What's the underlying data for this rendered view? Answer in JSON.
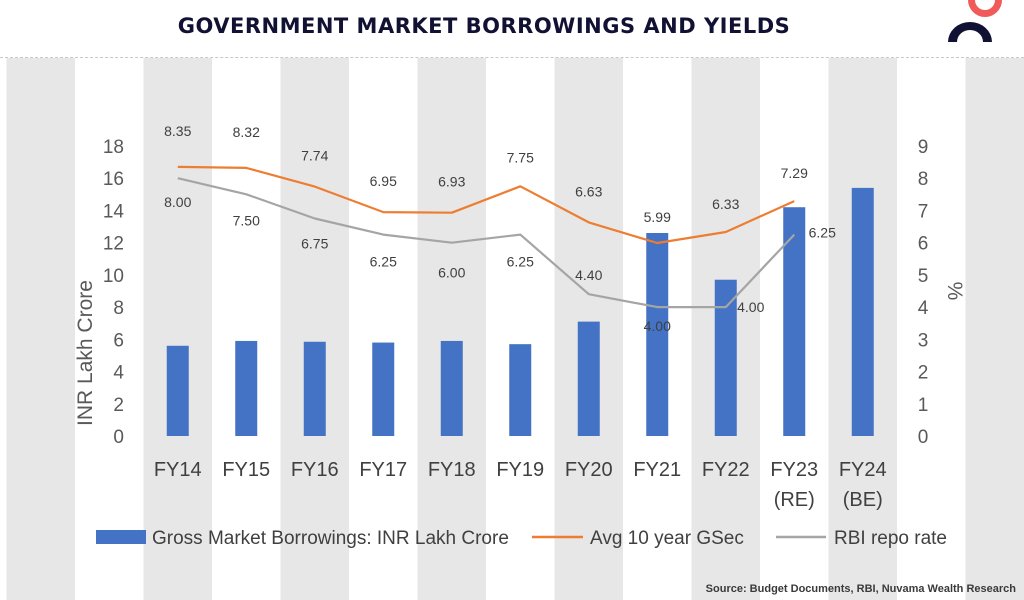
{
  "header": {
    "title": "GOVERNMENT MARKET BORROWINGS AND YIELDS"
  },
  "footer": {
    "source": "Source: Budget Documents, RBI, Nuvama Wealth Research"
  },
  "colors": {
    "bar": "#4472C4",
    "gsec": "#ED7D31",
    "repo": "#A5A5A5",
    "band": "#E7E7E7",
    "logo_red": "#F15A5A",
    "logo_navy": "#111133"
  },
  "icons": {
    "logo": "nuvama-logo-icon"
  },
  "chart_data": {
    "type": "bar",
    "title": "GOVERNMENT MARKET BORROWINGS AND YIELDS",
    "categories": [
      "FY14",
      "FY15",
      "FY16",
      "FY17",
      "FY18",
      "FY19",
      "FY20",
      "FY21",
      "FY22",
      "FY23 (RE)",
      "FY24 (BE)"
    ],
    "category_lines": [
      [
        "FY14"
      ],
      [
        "FY15"
      ],
      [
        "FY16"
      ],
      [
        "FY17"
      ],
      [
        "FY18"
      ],
      [
        "FY19"
      ],
      [
        "FY20"
      ],
      [
        "FY21"
      ],
      [
        "FY22"
      ],
      [
        "FY23",
        "(RE)"
      ],
      [
        "FY24",
        "(BE)"
      ]
    ],
    "ylabel": "INR Lakh Crore",
    "y2label": "%",
    "ylim": [
      0,
      18
    ],
    "y2lim": [
      0,
      9
    ],
    "yticks": [
      0,
      2,
      4,
      6,
      8,
      10,
      12,
      14,
      16,
      18
    ],
    "y2ticks": [
      0,
      1,
      2,
      3,
      4,
      5,
      6,
      7,
      8,
      9
    ],
    "grid": false,
    "legend_position": "bottom",
    "series": [
      {
        "name": "Gross Market Borrowings: INR Lakh Crore",
        "kind": "bar",
        "axis": "left",
        "values": [
          5.6,
          5.9,
          5.85,
          5.8,
          5.9,
          5.7,
          7.1,
          12.6,
          9.7,
          14.2,
          15.4
        ]
      },
      {
        "name": "Avg 10 year GSec",
        "kind": "line",
        "axis": "right",
        "values": [
          8.35,
          8.32,
          7.74,
          6.95,
          6.93,
          7.75,
          6.63,
          5.99,
          6.33,
          7.29,
          null
        ],
        "labels": [
          "8.35",
          "8.32",
          "7.74",
          "6.95",
          "6.93",
          "7.75",
          "6.63",
          "5.99",
          "6.33",
          "7.29",
          ""
        ]
      },
      {
        "name": "RBI repo rate",
        "kind": "line",
        "axis": "right",
        "values": [
          8.0,
          7.5,
          6.75,
          6.25,
          6.0,
          6.25,
          4.4,
          4.0,
          4.0,
          6.25,
          null
        ],
        "labels": [
          "8.00",
          "7.50",
          "6.75",
          "6.25",
          "6.00",
          "6.25",
          "4.40",
          "4.00",
          "4.00",
          "6.25",
          ""
        ]
      }
    ]
  }
}
